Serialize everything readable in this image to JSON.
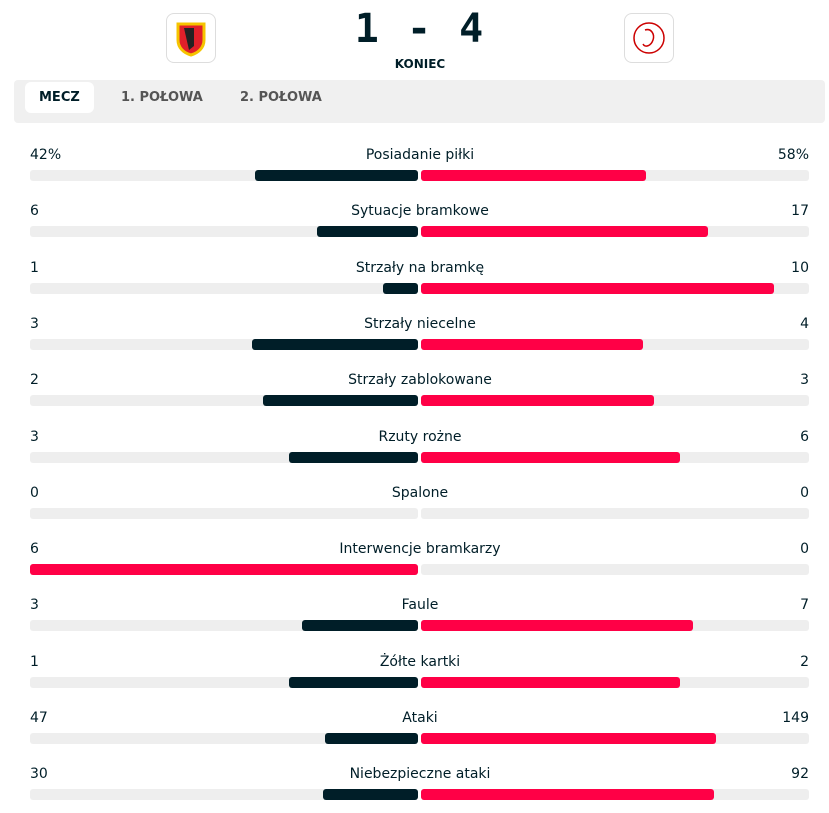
{
  "header": {
    "score": {
      "home": 1,
      "separator": "-",
      "away": 4
    },
    "status": "KONIEC"
  },
  "tabs": [
    "MECZ",
    "1. POŁOWA",
    "2. POŁOWA"
  ],
  "colors": {
    "leader": "#ff0046",
    "trailer": "#001e28",
    "track": "#eeeeee"
  },
  "stats": [
    {
      "label": "Posiadanie piłki",
      "home": 42,
      "away": 58,
      "home_label": "42%",
      "away_label": "58%"
    },
    {
      "label": "Sytuacje bramkowe",
      "home": 6,
      "away": 17
    },
    {
      "label": "Strzały na bramkę",
      "home": 1,
      "away": 10
    },
    {
      "label": "Strzały niecelne",
      "home": 3,
      "away": 4
    },
    {
      "label": "Strzały zablokowane",
      "home": 2,
      "away": 3
    },
    {
      "label": "Rzuty rożne",
      "home": 3,
      "away": 6
    },
    {
      "label": "Spalone",
      "home": 0,
      "away": 0
    },
    {
      "label": "Interwencje bramkarzy",
      "home": 6,
      "away": 0
    },
    {
      "label": "Faule",
      "home": 3,
      "away": 7
    },
    {
      "label": "Żółte kartki",
      "home": 1,
      "away": 2
    },
    {
      "label": "Ataki",
      "home": 47,
      "away": 149
    },
    {
      "label": "Niebezpieczne ataki",
      "home": 30,
      "away": 92
    }
  ]
}
